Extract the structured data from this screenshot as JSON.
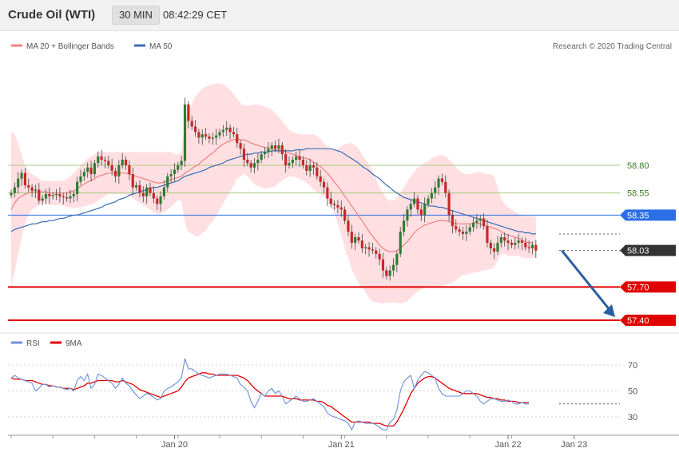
{
  "header": {
    "instrument": "Crude Oil (WTI)",
    "timeframe": "30 MIN",
    "time": "08:42:29 CET"
  },
  "copyright": "Research © 2020 Trading Central",
  "colors": {
    "ma20": "#f08080",
    "ma50": "#3a6db3",
    "band_fill": "#ffd9dc",
    "candle_up": "#2e7d32",
    "candle_down": "#c62828",
    "support": "#e00000",
    "pivot": "#2c6ee8",
    "resistance": "#a6c97f",
    "last": "#333333",
    "rsi": "#6c8fd8",
    "rsi_ma": "#e00000"
  },
  "chart_data": [
    {
      "type": "candlestick",
      "legend": [
        {
          "name": "MA 20 + Bollinger Bands",
          "color": "#f08080"
        },
        {
          "name": "MA 50",
          "color": "#3a6db3"
        }
      ],
      "ylim": [
        57.35,
        59.7
      ],
      "x_ticks": [
        {
          "label": "Jan 20",
          "index": 47
        },
        {
          "label": "Jan 21",
          "index": 95
        },
        {
          "label": "Jan 22",
          "index": 143
        },
        {
          "label": "Jan 23",
          "index": 162
        }
      ],
      "levels": [
        {
          "label": "58.80",
          "value": 58.8,
          "kind": "resistance"
        },
        {
          "label": "58.55",
          "value": 58.55,
          "kind": "resistance"
        },
        {
          "label": "58.35",
          "value": 58.35,
          "kind": "pivot"
        },
        {
          "label": "58.03",
          "value": 58.03,
          "kind": "last"
        },
        {
          "label": "57.70",
          "value": 57.7,
          "kind": "support"
        },
        {
          "label": "57.40",
          "value": 57.4,
          "kind": "support"
        }
      ],
      "close": [
        58.55,
        58.6,
        58.68,
        58.73,
        58.62,
        58.6,
        58.57,
        58.58,
        58.48,
        58.5,
        58.54,
        58.52,
        58.53,
        58.54,
        58.52,
        58.51,
        58.5,
        58.52,
        58.54,
        58.65,
        58.7,
        58.74,
        58.78,
        58.72,
        58.82,
        58.88,
        58.85,
        58.84,
        58.8,
        58.75,
        58.7,
        58.8,
        58.85,
        58.8,
        58.72,
        58.6,
        58.62,
        58.55,
        58.52,
        58.6,
        58.55,
        58.5,
        58.45,
        58.52,
        58.6,
        58.7,
        58.72,
        58.76,
        58.8,
        58.84,
        59.35,
        59.2,
        59.15,
        59.1,
        59.05,
        59.08,
        59.06,
        59.04,
        59.05,
        59.07,
        59.1,
        59.12,
        59.14,
        59.1,
        59.08,
        59.0,
        58.95,
        58.85,
        58.82,
        58.78,
        58.82,
        58.85,
        58.9,
        58.92,
        58.95,
        58.98,
        58.95,
        58.98,
        58.9,
        58.8,
        58.82,
        58.85,
        58.88,
        58.85,
        58.8,
        58.75,
        58.8,
        58.78,
        58.7,
        58.65,
        58.6,
        58.5,
        58.45,
        58.44,
        58.42,
        58.4,
        58.3,
        58.2,
        58.1,
        58.15,
        58.12,
        58.05,
        58.06,
        58.04,
        58.03,
        58.0,
        57.95,
        57.85,
        57.8,
        57.85,
        57.9,
        58.0,
        58.2,
        58.3,
        58.4,
        58.45,
        58.5,
        58.4,
        58.35,
        58.45,
        58.5,
        58.55,
        58.6,
        58.68,
        58.65,
        58.55,
        58.35,
        58.25,
        58.22,
        58.2,
        58.18,
        58.2,
        58.24,
        58.28,
        58.3,
        58.32,
        58.25,
        58.1,
        58.05,
        58.02,
        58.1,
        58.15,
        58.12,
        58.1,
        58.08,
        58.1,
        58.12,
        58.1,
        58.06,
        58.05,
        58.08,
        58.03
      ],
      "ma20": [
        58.4,
        58.46,
        58.5,
        58.52,
        58.54,
        58.55,
        58.56,
        58.56,
        58.56,
        58.56,
        58.56,
        58.55,
        58.55,
        58.55,
        58.55,
        58.55,
        58.55,
        58.56,
        58.57,
        58.59,
        58.61,
        58.63,
        58.65,
        58.66,
        58.68,
        58.7,
        58.71,
        58.72,
        58.73,
        58.73,
        58.73,
        58.73,
        58.73,
        58.73,
        58.72,
        58.71,
        58.7,
        58.69,
        58.68,
        58.67,
        58.66,
        58.65,
        58.64,
        58.64,
        58.65,
        58.66,
        58.67,
        58.68,
        58.69,
        58.7,
        58.73,
        58.75,
        58.77,
        58.79,
        58.81,
        58.84,
        58.86,
        58.89,
        58.91,
        58.94,
        58.97,
        58.99,
        59.01,
        59.02,
        59.03,
        59.04,
        59.03,
        59.03,
        59.02,
        59.0,
        58.99,
        58.98,
        58.97,
        58.96,
        58.96,
        58.95,
        58.94,
        58.94,
        58.93,
        58.92,
        58.91,
        58.9,
        58.89,
        58.88,
        58.87,
        58.86,
        58.85,
        58.83,
        58.81,
        58.79,
        58.76,
        58.73,
        58.69,
        58.65,
        58.61,
        58.57,
        58.52,
        58.48,
        58.43,
        58.39,
        58.34,
        58.3,
        58.25,
        58.2,
        58.16,
        58.12,
        58.08,
        58.05,
        58.03,
        58.02,
        58.02,
        58.03,
        58.05,
        58.08,
        58.11,
        58.15,
        58.19,
        58.22,
        58.24,
        58.26,
        58.27,
        58.28,
        58.29,
        58.3,
        58.3,
        58.3,
        58.29,
        58.28,
        58.27,
        58.27,
        58.27,
        58.27,
        58.27,
        58.28,
        58.28,
        58.27,
        58.26,
        58.25,
        58.24,
        58.23,
        58.22,
        58.2,
        58.18,
        58.17,
        58.16,
        58.15,
        58.14,
        58.12,
        58.11,
        58.1,
        58.1
      ],
      "ma50": [
        58.2,
        58.22,
        58.23,
        58.24,
        58.25,
        58.26,
        58.27,
        58.27,
        58.28,
        58.29,
        58.29,
        58.3,
        58.3,
        58.31,
        58.32,
        58.32,
        58.33,
        58.34,
        58.35,
        58.35,
        58.36,
        58.37,
        58.38,
        58.39,
        58.4,
        58.41,
        58.42,
        58.44,
        58.45,
        58.46,
        58.47,
        58.49,
        58.5,
        58.51,
        58.53,
        58.54,
        58.55,
        58.56,
        58.57,
        58.58,
        58.59,
        58.6,
        58.6,
        58.61,
        58.62,
        58.63,
        58.64,
        58.65,
        58.66,
        58.68,
        58.7,
        58.71,
        58.72,
        58.73,
        58.74,
        58.75,
        58.76,
        58.78,
        58.79,
        58.8,
        58.81,
        58.82,
        58.84,
        58.85,
        58.86,
        58.87,
        58.88,
        58.89,
        58.9,
        58.9,
        58.91,
        58.91,
        58.92,
        58.92,
        58.92,
        58.93,
        58.93,
        58.93,
        58.93,
        58.93,
        58.93,
        58.93,
        58.94,
        58.94,
        58.94,
        58.95,
        58.95,
        58.95,
        58.95,
        58.95,
        58.95,
        58.95,
        58.95,
        58.94,
        58.93,
        58.92,
        58.9,
        58.88,
        58.86,
        58.84,
        58.82,
        58.79,
        58.77,
        58.75,
        58.72,
        58.7,
        58.68,
        58.65,
        58.62,
        58.6,
        58.57,
        58.55,
        58.53,
        58.51,
        58.5,
        58.49,
        58.48,
        58.47,
        58.46,
        58.45,
        58.44,
        58.43,
        58.43,
        58.42,
        58.42,
        58.41,
        58.4,
        58.39,
        58.38,
        58.37,
        58.36,
        58.35,
        58.34,
        58.33,
        58.32,
        58.31,
        58.3,
        58.29,
        58.28,
        58.27,
        58.26,
        58.25,
        58.24,
        58.23,
        58.22,
        58.21,
        58.2,
        58.2,
        58.19,
        58.19,
        58.18,
        58.18
      ],
      "band_upper": [
        59.1,
        59.08,
        59.0,
        58.9,
        58.8,
        58.75,
        58.72,
        58.7,
        58.68,
        58.66,
        58.66,
        58.66,
        58.66,
        58.66,
        58.66,
        58.66,
        58.68,
        58.7,
        58.73,
        58.76,
        58.8,
        58.83,
        58.86,
        58.88,
        58.9,
        58.92,
        58.92,
        58.92,
        58.92,
        58.92,
        58.92,
        58.92,
        58.92,
        58.92,
        58.92,
        58.92,
        58.92,
        58.92,
        58.92,
        58.92,
        58.92,
        58.92,
        58.92,
        58.92,
        58.92,
        58.92,
        58.92,
        58.9,
        58.9,
        58.92,
        59.18,
        59.3,
        59.36,
        59.42,
        59.46,
        59.49,
        59.51,
        59.52,
        59.53,
        59.54,
        59.54,
        59.53,
        59.51,
        59.48,
        59.44,
        59.4,
        59.36,
        59.34,
        59.34,
        59.34,
        59.35,
        59.35,
        59.34,
        59.33,
        59.32,
        59.3,
        59.27,
        59.24,
        59.2,
        59.16,
        59.12,
        59.1,
        59.09,
        59.08,
        59.08,
        59.08,
        59.08,
        59.08,
        59.06,
        59.04,
        59.0,
        58.97,
        58.95,
        58.94,
        58.95,
        58.97,
        58.99,
        59.0,
        59.0,
        58.98,
        58.95,
        58.9,
        58.85,
        58.8,
        58.75,
        58.68,
        58.6,
        58.55,
        58.5,
        58.48,
        58.48,
        58.5,
        58.55,
        58.6,
        58.65,
        58.7,
        58.74,
        58.78,
        58.8,
        58.82,
        58.84,
        58.86,
        58.88,
        58.89,
        58.89,
        58.88,
        58.85,
        58.82,
        58.78,
        58.75,
        58.73,
        58.72,
        58.72,
        58.73,
        58.74,
        58.74,
        58.73,
        58.72,
        58.72,
        58.7,
        58.6,
        58.5,
        58.45,
        58.42,
        58.4,
        58.38,
        58.36,
        58.35,
        58.34,
        58.34,
        58.34,
        58.34,
        58.34
      ],
      "band_lower": [
        57.7,
        57.84,
        58.0,
        58.14,
        58.28,
        58.35,
        58.4,
        58.42,
        58.44,
        58.46,
        58.46,
        58.44,
        58.44,
        58.44,
        58.44,
        58.44,
        58.42,
        58.42,
        58.41,
        58.42,
        58.42,
        58.43,
        58.44,
        58.44,
        58.46,
        58.48,
        58.5,
        58.52,
        58.54,
        58.54,
        58.54,
        58.54,
        58.54,
        58.54,
        58.52,
        58.5,
        58.48,
        58.46,
        58.44,
        58.42,
        58.4,
        58.38,
        58.36,
        58.36,
        58.38,
        58.4,
        58.42,
        58.46,
        58.48,
        58.48,
        58.28,
        58.2,
        58.18,
        58.16,
        58.16,
        58.19,
        58.21,
        58.26,
        58.29,
        58.34,
        58.4,
        58.45,
        58.51,
        58.56,
        58.62,
        58.68,
        58.7,
        58.72,
        58.7,
        58.66,
        58.63,
        58.61,
        58.6,
        58.59,
        58.6,
        58.6,
        58.61,
        58.64,
        58.66,
        58.68,
        58.7,
        58.7,
        58.69,
        58.68,
        58.66,
        58.64,
        58.62,
        58.58,
        58.56,
        58.54,
        58.52,
        58.49,
        58.43,
        58.36,
        58.27,
        58.17,
        58.05,
        57.96,
        57.86,
        57.8,
        57.73,
        57.7,
        57.65,
        57.6,
        57.57,
        57.56,
        57.56,
        57.55,
        57.56,
        57.56,
        57.56,
        57.56,
        57.55,
        57.56,
        57.57,
        57.6,
        57.64,
        57.66,
        57.68,
        57.7,
        57.7,
        57.7,
        57.7,
        57.7,
        57.71,
        57.72,
        57.73,
        57.74,
        57.76,
        57.79,
        57.81,
        57.81,
        57.82,
        57.83,
        57.83,
        57.84,
        57.85,
        57.86,
        57.86,
        57.88,
        57.94,
        58.0,
        58.0,
        57.98,
        57.98,
        57.98,
        57.98,
        57.97,
        57.96,
        57.96,
        57.96,
        57.96,
        57.96
      ],
      "forecast": {
        "from_index": 158,
        "from_value": 58.03,
        "to_value": 57.4
      }
    },
    {
      "type": "line",
      "legend": [
        {
          "name": "RSI",
          "color": "#6c8fd8"
        },
        {
          "name": "9MA",
          "color": "#e00000"
        }
      ],
      "ylim": [
        18,
        80
      ],
      "y_ticks": [
        "70",
        "50",
        "30"
      ],
      "y_tick_values": [
        70,
        50,
        30
      ],
      "rsi": [
        60,
        62,
        60,
        59,
        58,
        57,
        56,
        50,
        52,
        55,
        55,
        53,
        54,
        53,
        53,
        52,
        51,
        52,
        50,
        58,
        61,
        58,
        63,
        52,
        55,
        63,
        62,
        60,
        58,
        56,
        52,
        55,
        60,
        56,
        54,
        50,
        47,
        44,
        46,
        48,
        47,
        45,
        43,
        44,
        50,
        52,
        53,
        55,
        57,
        60,
        75,
        67,
        67,
        65,
        63,
        62,
        61,
        60,
        61,
        62,
        63,
        63,
        63,
        62,
        61,
        60,
        55,
        53,
        50,
        42,
        37,
        42,
        48,
        46,
        50,
        52,
        48,
        50,
        46,
        40,
        42,
        44,
        46,
        44,
        42,
        42,
        43,
        44,
        42,
        40,
        38,
        33,
        31,
        30,
        29,
        28,
        27,
        25,
        20,
        26,
        27,
        26,
        25,
        25,
        25,
        24,
        22,
        20,
        20,
        26,
        28,
        35,
        50,
        57,
        60,
        62,
        52,
        58,
        62,
        65,
        64,
        62,
        60,
        52,
        48,
        46,
        46,
        46,
        46,
        46,
        48,
        50,
        50,
        48,
        46,
        42,
        40,
        42,
        44,
        44,
        43,
        42,
        42,
        43,
        42,
        40,
        40,
        41,
        40,
        40
      ],
      "rsi_ma": [
        60,
        59,
        59,
        59,
        58,
        58,
        58,
        57,
        56,
        55,
        55,
        54,
        54,
        53,
        53,
        52,
        52,
        52,
        51,
        52,
        53,
        54,
        56,
        56,
        57,
        58,
        58,
        58,
        58,
        58,
        57,
        57,
        58,
        57,
        56,
        55,
        53,
        51,
        50,
        49,
        48,
        47,
        46,
        45,
        46,
        47,
        48,
        49,
        50,
        53,
        57,
        60,
        61,
        62,
        63,
        64,
        64,
        63,
        63,
        62,
        62,
        62,
        62,
        62,
        62,
        62,
        61,
        60,
        58,
        55,
        52,
        50,
        48,
        46,
        46,
        46,
        46,
        46,
        46,
        45,
        44,
        44,
        44,
        43,
        43,
        43,
        43,
        43,
        42,
        42,
        41,
        39,
        38,
        36,
        34,
        32,
        30,
        28,
        26,
        26,
        26,
        26,
        26,
        26,
        25,
        25,
        25,
        24,
        23,
        23,
        23,
        26,
        31,
        36,
        42,
        48,
        52,
        56,
        58,
        60,
        61,
        61,
        60,
        58,
        56,
        54,
        52,
        51,
        50,
        49,
        48,
        48,
        48,
        48,
        48,
        47,
        46,
        45,
        45,
        44,
        44,
        43,
        43,
        42,
        42,
        42,
        41,
        41,
        41,
        41
      ],
      "last_level": 40
    }
  ]
}
